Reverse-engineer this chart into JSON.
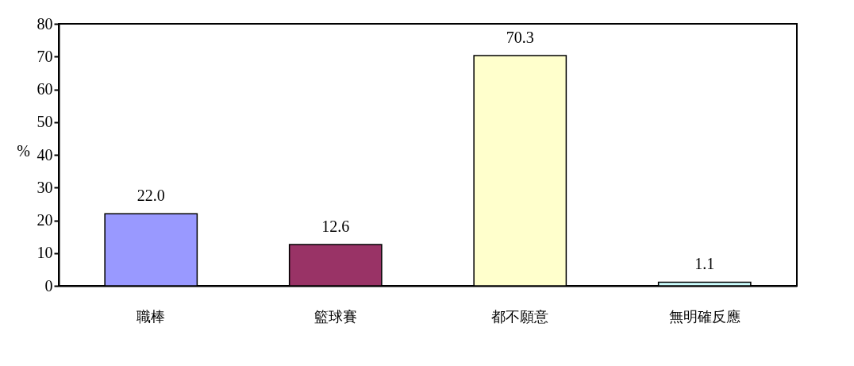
{
  "chart_data": {
    "type": "bar",
    "ylabel": "%",
    "categories": [
      "職棒",
      "籃球賽",
      "都不願意",
      "無明確反應"
    ],
    "values": [
      22.0,
      12.6,
      70.3,
      1.1
    ],
    "colors": [
      "#9999ff",
      "#993366",
      "#ffffcc",
      "#ccffff"
    ],
    "ylim": [
      0,
      80
    ],
    "yticks": [
      0,
      10,
      20,
      30,
      40,
      50,
      60,
      70,
      80
    ],
    "value_labels": [
      "22.0",
      "12.6",
      "70.3",
      "1.1"
    ],
    "grid": false
  }
}
